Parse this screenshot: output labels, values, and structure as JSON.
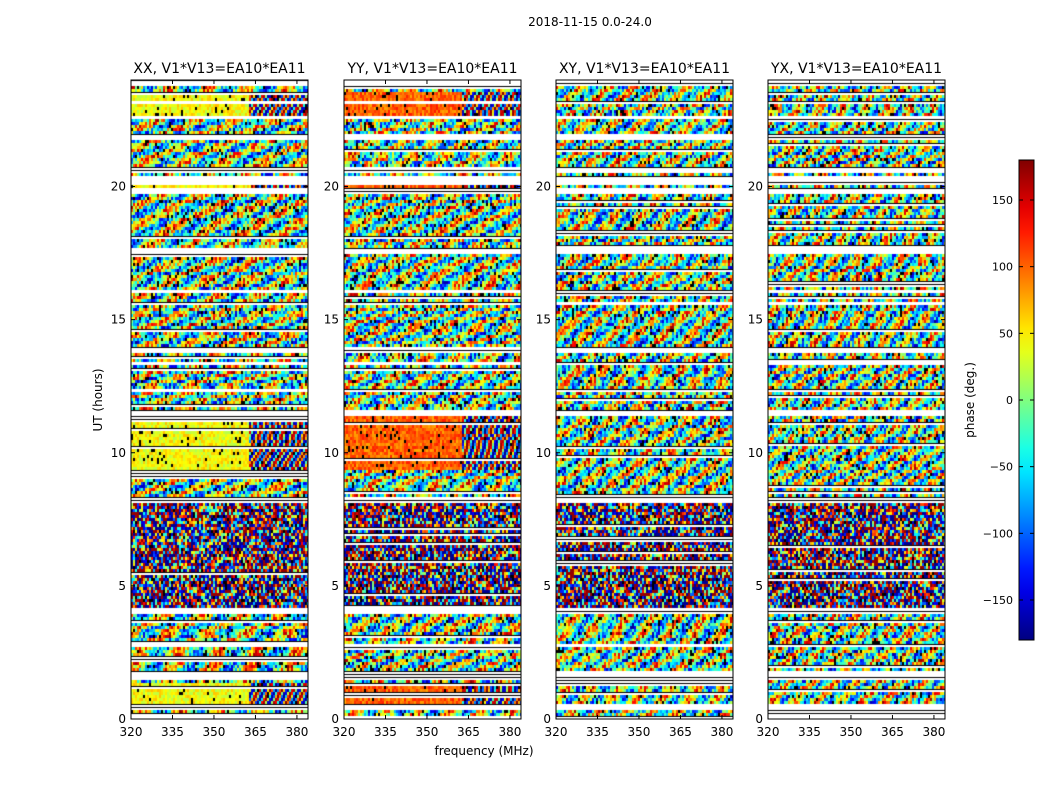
{
  "figure": {
    "suptitle": "2018-11-15 0.0-24.0",
    "ylabel": "UT (hours)",
    "xlabel": "frequency (MHz)"
  },
  "chart_data": [
    {
      "type": "heatmap",
      "title": "XX, V1*V13=EA10*EA11",
      "xlim": [
        320,
        384
      ],
      "ylim": [
        0,
        24
      ],
      "xticks": [
        320,
        335,
        350,
        365,
        380
      ],
      "yticks": [
        0,
        5,
        10,
        15,
        20
      ],
      "z_quantity": "phase (deg.)"
    },
    {
      "type": "heatmap",
      "title": "YY, V1*V13=EA10*EA11",
      "xlim": [
        320,
        384
      ],
      "ylim": [
        0,
        24
      ],
      "xticks": [
        320,
        335,
        350,
        365,
        380
      ],
      "yticks": [
        0,
        5,
        10,
        15,
        20
      ],
      "z_quantity": "phase (deg.)"
    },
    {
      "type": "heatmap",
      "title": "XY, V1*V13=EA10*EA11",
      "xlim": [
        320,
        384
      ],
      "ylim": [
        0,
        24
      ],
      "xticks": [
        320,
        335,
        350,
        365,
        380
      ],
      "yticks": [
        0,
        5,
        10,
        15,
        20
      ],
      "z_quantity": "phase (deg.)"
    },
    {
      "type": "heatmap",
      "title": "YX, V1*V13=EA10*EA11",
      "xlim": [
        320,
        384
      ],
      "ylim": [
        0,
        24
      ],
      "xticks": [
        320,
        335,
        350,
        365,
        380
      ],
      "yticks": [
        0,
        5,
        10,
        15,
        20
      ],
      "z_quantity": "phase (deg.)"
    }
  ],
  "colorbar": {
    "label": "phase (deg.)",
    "range": [
      -180,
      180
    ],
    "ticks": [
      150,
      100,
      50,
      0,
      -50,
      -100,
      -150
    ],
    "tick_labels": [
      "150",
      "100",
      "50",
      "0",
      "−50",
      "−100",
      "−150"
    ],
    "colormap": [
      "#00007f",
      "#0000ff",
      "#007fff",
      "#00ffff",
      "#7fff7f",
      "#ffff00",
      "#ff7f00",
      "#ff0000",
      "#7f0000"
    ]
  },
  "data_gaps_ut_hours": [
    [
      0.0,
      0.15
    ],
    [
      0.35,
      0.55
    ],
    [
      1.45,
      1.75
    ],
    [
      2.75,
      2.85
    ],
    [
      3.95,
      4.15
    ],
    [
      6.6,
      6.7
    ],
    [
      8.15,
      8.3
    ],
    [
      11.35,
      11.55
    ],
    [
      12.3,
      12.4
    ],
    [
      13.3,
      13.45
    ],
    [
      13.7,
      14.0
    ],
    [
      15.55,
      15.65
    ],
    [
      16.0,
      16.15
    ],
    [
      17.5,
      17.65
    ],
    [
      19.75,
      19.9
    ],
    [
      20.1,
      20.35
    ],
    [
      20.55,
      20.75
    ],
    [
      21.75,
      22.0
    ],
    [
      22.5,
      22.65
    ],
    [
      23.1,
      23.2
    ],
    [
      23.75,
      23.95
    ]
  ]
}
